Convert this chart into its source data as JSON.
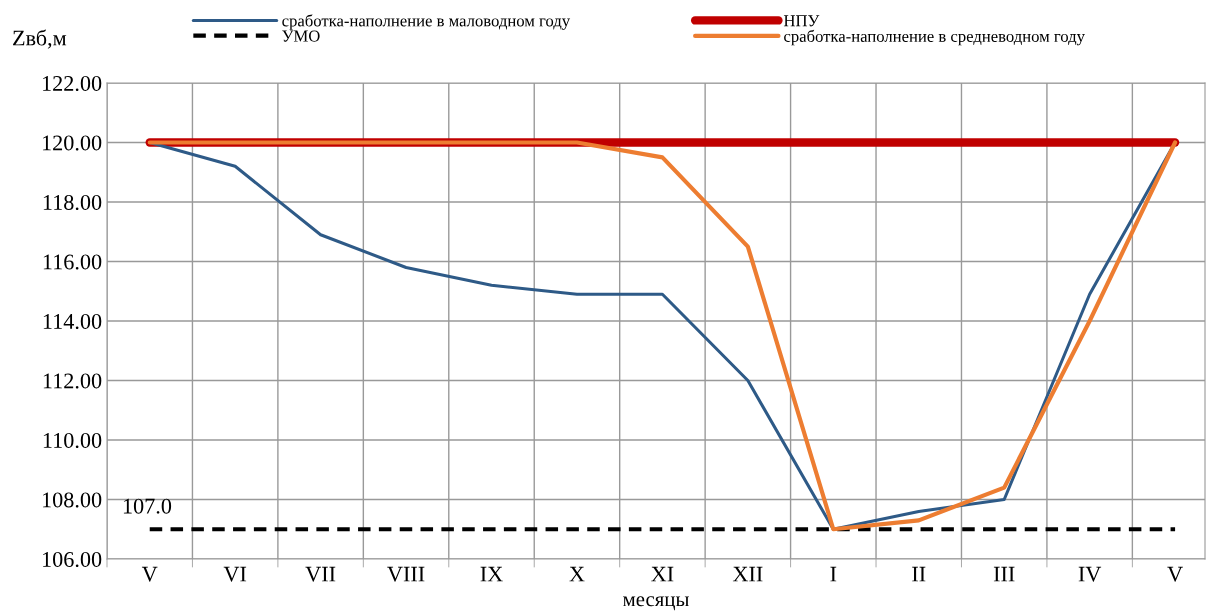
{
  "chart_data": {
    "type": "line",
    "categories": [
      "V",
      "VI",
      "VII",
      "VIII",
      "IX",
      "X",
      "XI",
      "XII",
      "I",
      "II",
      "III",
      "IV",
      "V"
    ],
    "xlabel": "месяцы",
    "ylabel": "Zвб,м",
    "ylim": [
      106,
      122
    ],
    "yticks": [
      {
        "value": 106,
        "label": "106.00"
      },
      {
        "value": 108,
        "label": "108.00"
      },
      {
        "value": 110,
        "label": "110.00"
      },
      {
        "value": 112,
        "label": "112.00"
      },
      {
        "value": 114,
        "label": "114.00"
      },
      {
        "value": 116,
        "label": "116.00"
      },
      {
        "value": 118,
        "label": "118.00"
      },
      {
        "value": 120,
        "label": "120.00"
      },
      {
        "value": 122,
        "label": "122.00"
      }
    ],
    "grid": true,
    "legend": "top",
    "marker": "none",
    "series": [
      {
        "name": "сработка-наполнение в маловодном году",
        "color": "#2e5a87",
        "line_style": "solid",
        "values": [
          120,
          119.2,
          116.9,
          115.8,
          115.2,
          114.9,
          114.9,
          112.0,
          107.0,
          107.6,
          108.0,
          114.9,
          120
        ]
      },
      {
        "name": "УМО",
        "color": "#000000",
        "line_style": "dashed",
        "values": [
          107,
          107,
          107,
          107,
          107,
          107,
          107,
          107,
          107,
          107,
          107,
          107,
          107
        ]
      },
      {
        "name": "НПУ",
        "color": "#c00000",
        "line_style": "solid",
        "values": [
          120,
          120,
          120,
          120,
          120,
          120,
          120,
          120,
          120,
          120,
          120,
          120,
          120
        ]
      },
      {
        "name": "сработка-наполнение в средневодном году",
        "color": "#ed7d31",
        "line_style": "solid",
        "values": [
          120,
          120,
          120,
          120,
          120,
          120,
          119.5,
          116.5,
          107.0,
          107.3,
          108.4,
          114.0,
          120
        ]
      }
    ],
    "annotations": [
      {
        "text": "107.0",
        "x": "V",
        "y": 107
      }
    ]
  }
}
